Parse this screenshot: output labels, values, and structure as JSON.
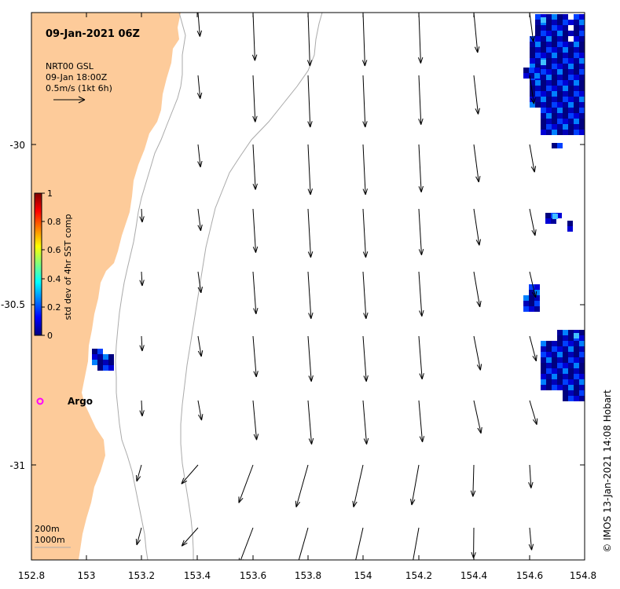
{
  "map": {
    "title": "09-Jan-2021 06Z",
    "product": "NRT00 GSL",
    "valid_time": "09-Jan 18:00Z",
    "scale_label": "0.5m/s (1kt 6h)",
    "credit": "© IMOS 13-Jan-2021 14:08 Hobart",
    "argo_label": "Argo",
    "depth_labels": [
      "200m",
      "1000m"
    ],
    "colors": {
      "land": "#FDCB9A",
      "isobath": "#aaaaaa",
      "argo_marker": "#ff00ff",
      "vector": "#000000"
    }
  },
  "colorbar": {
    "label": "std dev of 4hr SST comp",
    "ticks": [
      "1",
      "0.8",
      "0.6",
      "0.4",
      "0.2",
      "0"
    ],
    "colormap": "jet"
  },
  "axes": {
    "x_ticks": [
      "152.8",
      "153",
      "153.2",
      "153.4",
      "153.6",
      "153.8",
      "154",
      "154.2",
      "154.4",
      "154.6",
      "154.8"
    ],
    "y_ticks": [
      "-30",
      "-30.5",
      "-31"
    ],
    "xlim": [
      152.8,
      154.8
    ],
    "ylim": [
      -31.3,
      -29.6
    ]
  }
}
